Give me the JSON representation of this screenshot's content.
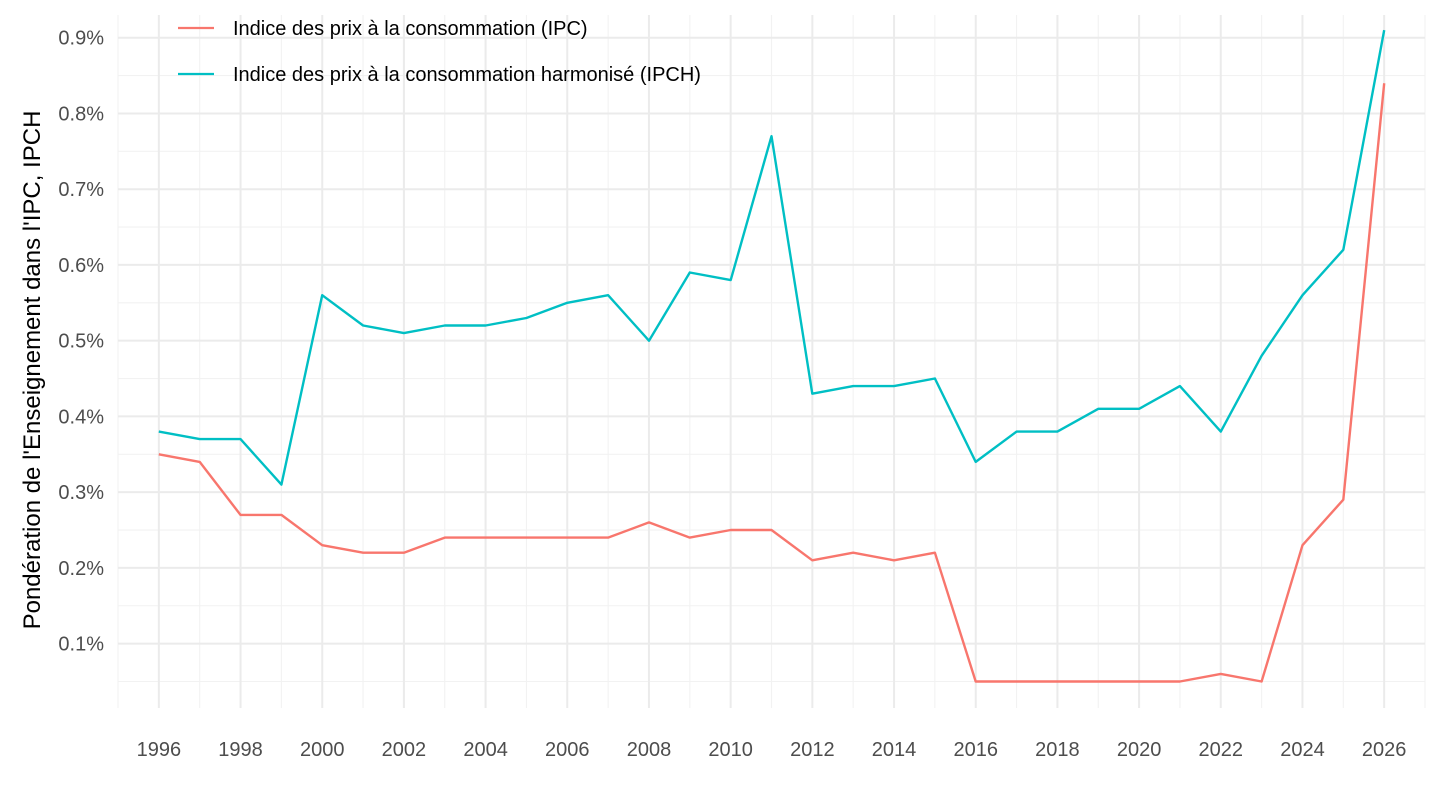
{
  "chart_data": {
    "type": "line",
    "title": "",
    "xlabel": "",
    "ylabel": "Pondération de l'Enseignement dans l'IPC, IPCH",
    "x": [
      1996,
      1997,
      1998,
      1999,
      2000,
      2001,
      2002,
      2003,
      2004,
      2005,
      2006,
      2007,
      2008,
      2009,
      2010,
      2011,
      2012,
      2013,
      2014,
      2015,
      2016,
      2017,
      2018,
      2019,
      2020,
      2021,
      2022,
      2023,
      2024,
      2025,
      2026
    ],
    "series": [
      {
        "name": "Indice des prix à la consommation (IPC)",
        "color": "#F8766D",
        "values": [
          0.35,
          0.34,
          0.27,
          0.27,
          0.23,
          0.22,
          0.22,
          0.24,
          0.24,
          0.24,
          0.24,
          0.24,
          0.26,
          0.24,
          0.25,
          0.25,
          0.21,
          0.22,
          0.21,
          0.22,
          0.05,
          0.05,
          0.05,
          0.05,
          0.05,
          0.05,
          0.06,
          0.05,
          0.23,
          0.29,
          0.84
        ]
      },
      {
        "name": "Indice des prix à la consommation harmonisé (IPCH)",
        "color": "#00BFC4",
        "values": [
          0.38,
          0.37,
          0.37,
          0.31,
          0.56,
          0.52,
          0.51,
          0.52,
          0.52,
          0.53,
          0.55,
          0.56,
          0.5,
          0.59,
          0.58,
          0.77,
          0.43,
          0.44,
          0.44,
          0.45,
          0.34,
          0.38,
          0.38,
          0.41,
          0.41,
          0.44,
          0.38,
          0.48,
          0.56,
          0.62,
          0.91
        ]
      }
    ],
    "xlim": [
      1995,
      2027
    ],
    "ylim": [
      0.015,
      0.93
    ],
    "x_ticks": [
      1996,
      1998,
      2000,
      2002,
      2004,
      2006,
      2008,
      2010,
      2012,
      2014,
      2016,
      2018,
      2020,
      2022,
      2024,
      2026
    ],
    "x_tick_labels": [
      "1996",
      "1998",
      "2000",
      "2002",
      "2004",
      "2006",
      "2008",
      "2010",
      "2012",
      "2014",
      "2016",
      "2018",
      "2020",
      "2022",
      "2024",
      "2026"
    ],
    "y_ticks": [
      0.1,
      0.2,
      0.3,
      0.4,
      0.5,
      0.6,
      0.7,
      0.8,
      0.9
    ],
    "y_tick_labels": [
      "0.1%",
      "0.2%",
      "0.3%",
      "0.4%",
      "0.5%",
      "0.6%",
      "0.7%",
      "0.8%",
      "0.9%"
    ],
    "grid": true,
    "legend_position": "top-left"
  },
  "colors": {
    "grid_major": "#EBEBEB",
    "grid_minor": "#F2F2F2",
    "background": "#FFFFFF"
  }
}
